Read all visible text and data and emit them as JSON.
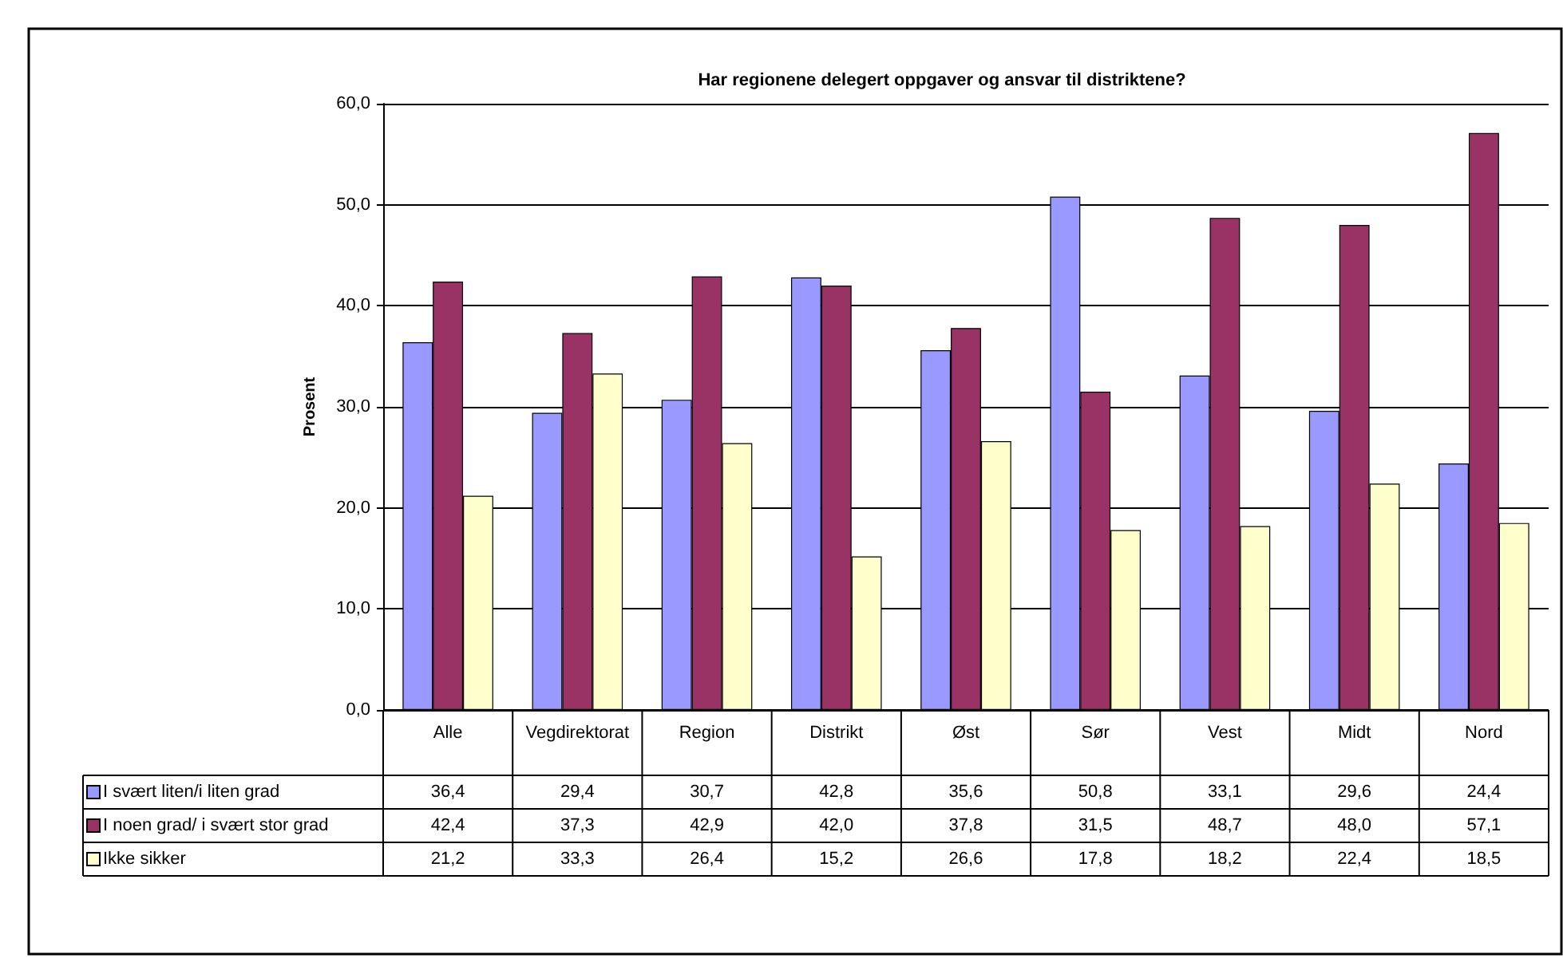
{
  "chart_data": {
    "type": "bar",
    "title": "Har regionene delegert oppgaver og ansvar til distriktene?",
    "ylabel": "Prosent",
    "categories": [
      "Alle",
      "Vegdirektorat",
      "Region",
      "Distrikt",
      "Øst",
      "Sør",
      "Vest",
      "Midt",
      "Nord"
    ],
    "series": [
      {
        "name": "I svært liten/i liten grad",
        "color": "#9999ff",
        "values": [
          36.4,
          29.4,
          30.7,
          42.8,
          35.6,
          50.8,
          33.1,
          29.6,
          24.4
        ],
        "value_labels": [
          "36,4",
          "29,4",
          "30,7",
          "42,8",
          "35,6",
          "50,8",
          "33,1",
          "29,6",
          "24,4"
        ]
      },
      {
        "name": "I noen grad/ i svært stor grad",
        "color": "#993366",
        "values": [
          42.4,
          37.3,
          42.9,
          42.0,
          37.8,
          31.5,
          48.7,
          48.0,
          57.1
        ],
        "value_labels": [
          "42,4",
          "37,3",
          "42,9",
          "42,0",
          "37,8",
          "31,5",
          "48,7",
          "48,0",
          "57,1"
        ]
      },
      {
        "name": "Ikke sikker",
        "color": "#ffffcc",
        "values": [
          21.2,
          33.3,
          26.4,
          15.2,
          26.6,
          17.8,
          18.2,
          22.4,
          18.5
        ],
        "value_labels": [
          "21,2",
          "33,3",
          "26,4",
          "15,2",
          "26,6",
          "17,8",
          "18,2",
          "22,4",
          "18,5"
        ]
      }
    ],
    "ylim": [
      0,
      60
    ],
    "yticks": [
      {
        "value": 0,
        "label": "0,0"
      },
      {
        "value": 10,
        "label": "10,0"
      },
      {
        "value": 20,
        "label": "20,0"
      },
      {
        "value": 30,
        "label": "30,0"
      },
      {
        "value": 40,
        "label": "40,0"
      },
      {
        "value": 50,
        "label": "50,0"
      },
      {
        "value": 60,
        "label": "60,0"
      }
    ],
    "grid": "y",
    "legend": "bottom left"
  }
}
